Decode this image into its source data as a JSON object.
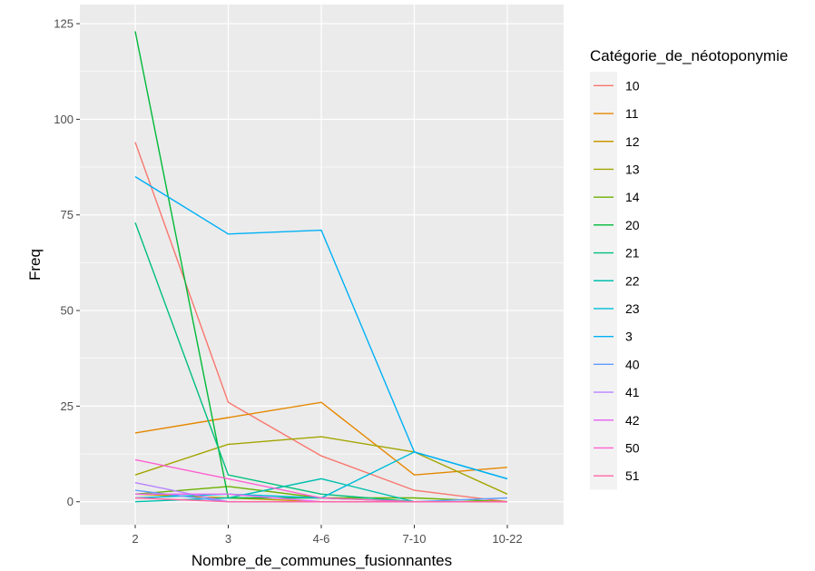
{
  "chart_data": {
    "type": "line",
    "xlabel": "Nombre_de_communes_fusionnantes",
    "ylabel": "Freq",
    "categories": [
      "2",
      "3",
      "4-6",
      "7-10",
      "10-22"
    ],
    "ylim": [
      -6,
      130
    ],
    "yticks": [
      0,
      25,
      50,
      75,
      100,
      125
    ],
    "grid": true,
    "legend": {
      "title": "Catégorie_de_néotoponymie",
      "position": "right"
    },
    "series": [
      {
        "name": "10",
        "color": "#F8766D",
        "values": [
          94,
          26,
          12,
          3,
          0
        ]
      },
      {
        "name": "11",
        "color": "#E58700",
        "values": [
          18,
          22,
          26,
          7,
          9
        ]
      },
      {
        "name": "12",
        "color": "#C99800",
        "values": [
          2,
          1,
          0,
          0,
          0
        ]
      },
      {
        "name": "13",
        "color": "#A3A500",
        "values": [
          7,
          15,
          17,
          13,
          2
        ]
      },
      {
        "name": "14",
        "color": "#6BB100",
        "values": [
          2,
          4,
          1,
          1,
          0
        ]
      },
      {
        "name": "20",
        "color": "#00BA38",
        "values": [
          123,
          1,
          1,
          0,
          0
        ]
      },
      {
        "name": "21",
        "color": "#00BF7D",
        "values": [
          73,
          7,
          2,
          0,
          0
        ]
      },
      {
        "name": "22",
        "color": "#00C0AF",
        "values": [
          0,
          1,
          6,
          0,
          0
        ]
      },
      {
        "name": "23",
        "color": "#00BCD8",
        "values": [
          1,
          2,
          1,
          13,
          6
        ]
      },
      {
        "name": "3",
        "color": "#00B0F6",
        "values": [
          85,
          70,
          71,
          13,
          6
        ]
      },
      {
        "name": "40",
        "color": "#619CFF",
        "values": [
          3,
          0,
          0,
          0,
          1
        ]
      },
      {
        "name": "41",
        "color": "#B983FF",
        "values": [
          5,
          0,
          0,
          0,
          0
        ]
      },
      {
        "name": "42",
        "color": "#E76BF3",
        "values": [
          2,
          2,
          0,
          0,
          0
        ]
      },
      {
        "name": "50",
        "color": "#FD61D1",
        "values": [
          11,
          6,
          1,
          0,
          0
        ]
      },
      {
        "name": "51",
        "color": "#FF67A4",
        "values": [
          1,
          0,
          0,
          0,
          0
        ]
      }
    ]
  }
}
